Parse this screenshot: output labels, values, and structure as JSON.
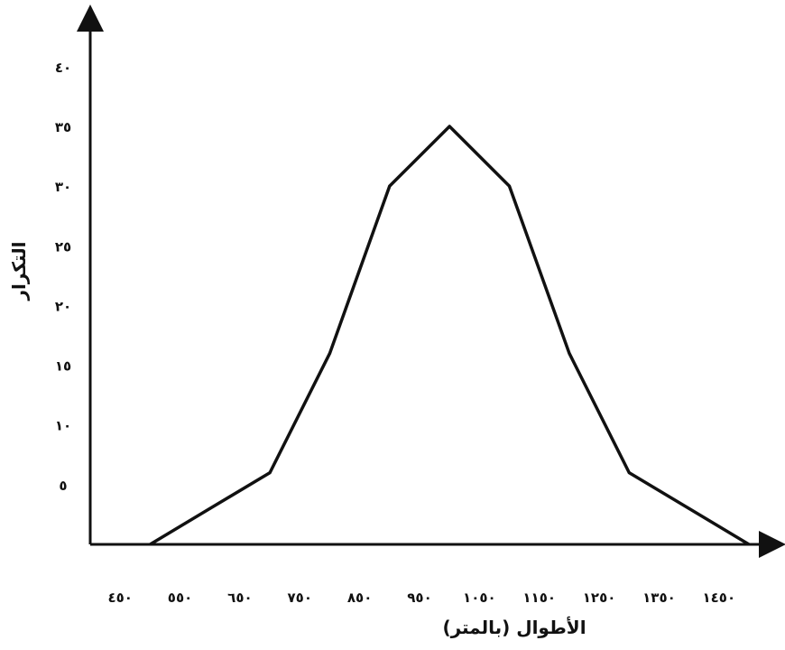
{
  "chart_data": {
    "type": "line",
    "title": "",
    "xlabel": "الأطوال (بالمتر)",
    "ylabel": "التكرار",
    "x": [
      500,
      600,
      700,
      800,
      900,
      1000,
      1100,
      1200,
      1300,
      1400,
      1500
    ],
    "series": [
      {
        "values": [
          0,
          3,
          6,
          16,
          30,
          35,
          30,
          16,
          6,
          3,
          0
        ]
      }
    ],
    "x_tick_labels": [
      "٤٥٠",
      "٥٥٠",
      "٦٥٠",
      "٧٥٠",
      "٨٥٠",
      "٩٥٠",
      "١٠٥٠",
      "١١٥٠",
      "١٢٥٠",
      "١٣٥٠",
      "١٤٥٠"
    ],
    "y_ticks": [
      5,
      10,
      15,
      20,
      25,
      30,
      35,
      40
    ],
    "y_tick_labels": [
      "٥",
      "١٠",
      "١٥",
      "٢٠",
      "٢٥",
      "٣٠",
      "٣٥",
      "٤٠"
    ],
    "xlim": [
      400,
      1500
    ],
    "ylim": [
      0,
      45
    ],
    "grid": false,
    "legend": "none",
    "line_color": "#111111"
  }
}
